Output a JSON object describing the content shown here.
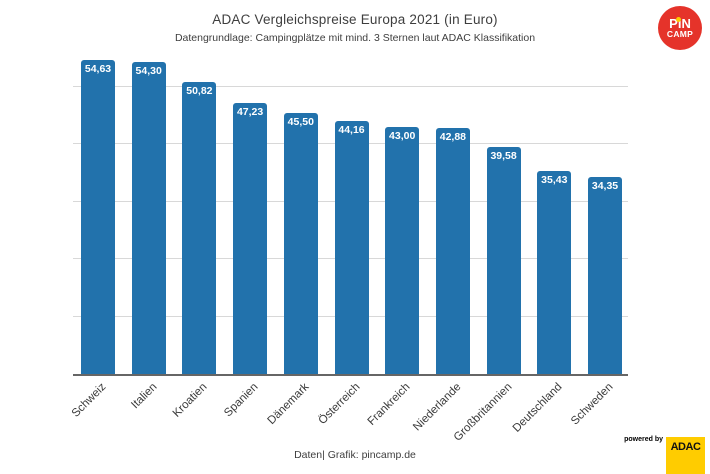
{
  "header": {
    "title": "ADAC Vergleichspreise Europa 2021 (in Euro)",
    "subtitle": "Datengrundlage: Campingplätze mit mind. 3 Sternen laut ADAC Klassifikation"
  },
  "logos": {
    "pincamp_line1": "PiN",
    "pincamp_line2": "CAMP"
  },
  "chart_data": {
    "type": "bar",
    "title": "ADAC Vergleichspreise Europa 2021 (in Euro)",
    "subtitle": "Datengrundlage: Campingplätze mit mind. 3 Sternen laut ADAC Klassifikation",
    "categories": [
      "Schweiz",
      "Italien",
      "Kroatien",
      "Spanien",
      "Dänemark",
      "Österreich",
      "Frankreich",
      "Niederlande",
      "Großbritannien",
      "Deutschland",
      "Schweden"
    ],
    "values": [
      54.63,
      54.3,
      50.82,
      47.23,
      45.5,
      44.16,
      43.0,
      42.88,
      39.58,
      35.43,
      34.35
    ],
    "value_labels": [
      "54,63",
      "54,30",
      "50,82",
      "47,23",
      "45,50",
      "44,16",
      "43,00",
      "42,88",
      "39,58",
      "35,43",
      "34,35"
    ],
    "xlabel": "",
    "ylabel": "",
    "ylim": [
      0,
      55.4
    ],
    "gridline_step": 10,
    "grid": true,
    "legend": false,
    "y_axis_labels_shown": false
  },
  "footer": {
    "credit": "Daten| Grafik: pincamp.de",
    "powered_by": "powered by",
    "adac": "ADAC"
  },
  "colors": {
    "bar": "#2272ac",
    "gridline": "#d8d8d8",
    "axis": "#666666",
    "text": "#3e3e3e",
    "value_label": "#ffffff",
    "pincamp_red": "#e5332a",
    "adac_yellow": "#ffcc00"
  }
}
